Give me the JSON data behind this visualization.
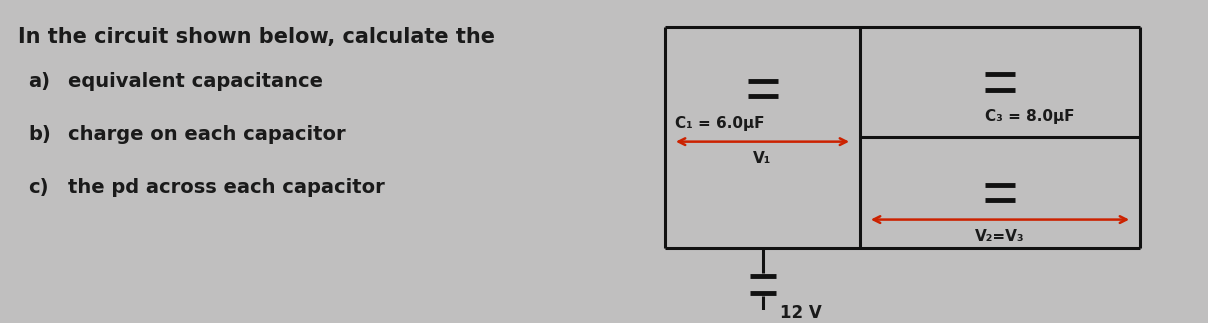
{
  "background_color": "#c0bfbf",
  "text_color": "#1a1a1a",
  "title_line": "In the circuit shown below, calculate the",
  "items": [
    [
      "a)",
      "equivalent capacitance"
    ],
    [
      "b)",
      "charge on each capacitor"
    ],
    [
      "c)",
      "the pd across each capacitor"
    ]
  ],
  "circuit": {
    "c1_label": "C₁ = 6.0μF",
    "c3_label": "C₃ = 8.0μF",
    "v1_label": "V₁",
    "v23_label": "V₂=V₃",
    "battery_label": "12 V",
    "line_color": "#111111",
    "arrow_color": "#cc2200"
  },
  "font_size_title": 15,
  "font_size_items": 14,
  "font_size_circuit": 11
}
